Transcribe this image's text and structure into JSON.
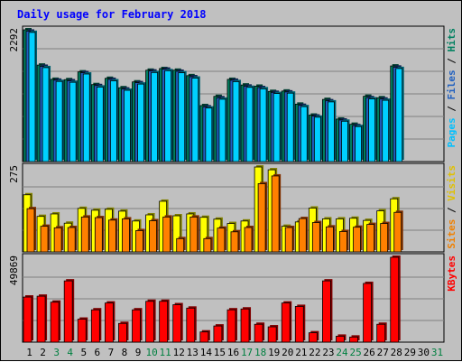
{
  "chart_data": [
    {
      "type": "bar",
      "title": "Daily usage for February 2018",
      "categories": [
        "1",
        "2",
        "3",
        "4",
        "5",
        "6",
        "7",
        "8",
        "9",
        "10",
        "11",
        "12",
        "13",
        "14",
        "15",
        "16",
        "17",
        "18",
        "19",
        "20",
        "21",
        "22",
        "23",
        "24",
        "25",
        "26",
        "27",
        "28",
        "29",
        "30",
        "31"
      ],
      "weekend_days": [
        "3",
        "4",
        "10",
        "11",
        "17",
        "18",
        "24",
        "25",
        "31"
      ],
      "panel": "top",
      "ymax_label": "2292",
      "ylim": [
        0,
        2292
      ],
      "right_axis_labels": [
        {
          "text": "Pages",
          "color": "#00c0ff"
        },
        {
          "text": " / ",
          "color": "#000000"
        },
        {
          "text": "Files",
          "color": "#2060c0"
        },
        {
          "text": " / ",
          "color": "#000000"
        },
        {
          "text": "Hits",
          "color": "#008060"
        }
      ],
      "series": [
        {
          "name": "Hits",
          "color": "#008060",
          "values": [
            2292,
            1678,
            1431,
            1425,
            1560,
            1339,
            1448,
            1284,
            1386,
            1589,
            1618,
            1589,
            1494,
            974,
            1134,
            1430,
            1332,
            1311,
            1220,
            1227,
            999,
            808,
            1081,
            739,
            649,
            1136,
            1110,
            1663,
            0,
            0,
            0
          ]
        },
        {
          "name": "Files",
          "color": "#2060c0",
          "values": [
            2269,
            1657,
            1416,
            1405,
            1547,
            1322,
            1430,
            1262,
            1372,
            1575,
            1608,
            1570,
            1475,
            952,
            1110,
            1415,
            1313,
            1287,
            1204,
            1211,
            978,
            792,
            1057,
            723,
            626,
            1112,
            1088,
            1643,
            0,
            0,
            0
          ]
        },
        {
          "name": "Pages",
          "color": "#00d0ff",
          "values": [
            2247,
            1634,
            1394,
            1379,
            1523,
            1297,
            1405,
            1240,
            1348,
            1549,
            1581,
            1545,
            1452,
            932,
            1085,
            1391,
            1291,
            1266,
            1184,
            1190,
            956,
            772,
            1038,
            702,
            609,
            1091,
            1066,
            1619,
            0,
            0,
            0
          ]
        }
      ]
    },
    {
      "type": "bar",
      "panel": "middle",
      "ymax_label": "275",
      "ylim": [
        0,
        275
      ],
      "right_axis_labels": [
        {
          "text": "Sites",
          "color": "#f08000"
        },
        {
          "text": " / ",
          "color": "#000000"
        },
        {
          "text": "Visits",
          "color": "#e0c000"
        }
      ],
      "series": [
        {
          "name": "Visits",
          "color": "#ffff00",
          "values": [
            185,
            115,
            123,
            93,
            141,
            135,
            138,
            132,
            100,
            120,
            164,
            117,
            123,
            112,
            106,
            92,
            100,
            275,
            266,
            83,
            97,
            142,
            107,
            107,
            109,
            102,
            133,
            172,
            0,
            0,
            0
          ]
        },
        {
          "name": "Sites",
          "color": "#ff8000",
          "values": [
            140,
            83,
            78,
            79,
            113,
            111,
            103,
            107,
            69,
            101,
            113,
            43,
            113,
            43,
            77,
            65,
            79,
            221,
            246,
            79,
            108,
            95,
            81,
            66,
            80,
            89,
            92,
            128,
            0,
            0,
            0
          ]
        }
      ]
    },
    {
      "type": "bar",
      "panel": "bottom",
      "ymax_label": "49869",
      "ylim": [
        0,
        49869
      ],
      "right_axis_labels": [
        {
          "text": "KBytes",
          "color": "#ff0000"
        }
      ],
      "series": [
        {
          "name": "KBytes",
          "color": "#ff0000",
          "values": [
            26500,
            27000,
            23500,
            36000,
            13500,
            19000,
            23000,
            11000,
            19000,
            24000,
            24000,
            22000,
            20000,
            6000,
            9500,
            19000,
            19500,
            10500,
            9000,
            23000,
            21000,
            5500,
            36000,
            3500,
            3000,
            34500,
            10500,
            49869,
            0,
            0,
            0
          ]
        }
      ]
    }
  ]
}
